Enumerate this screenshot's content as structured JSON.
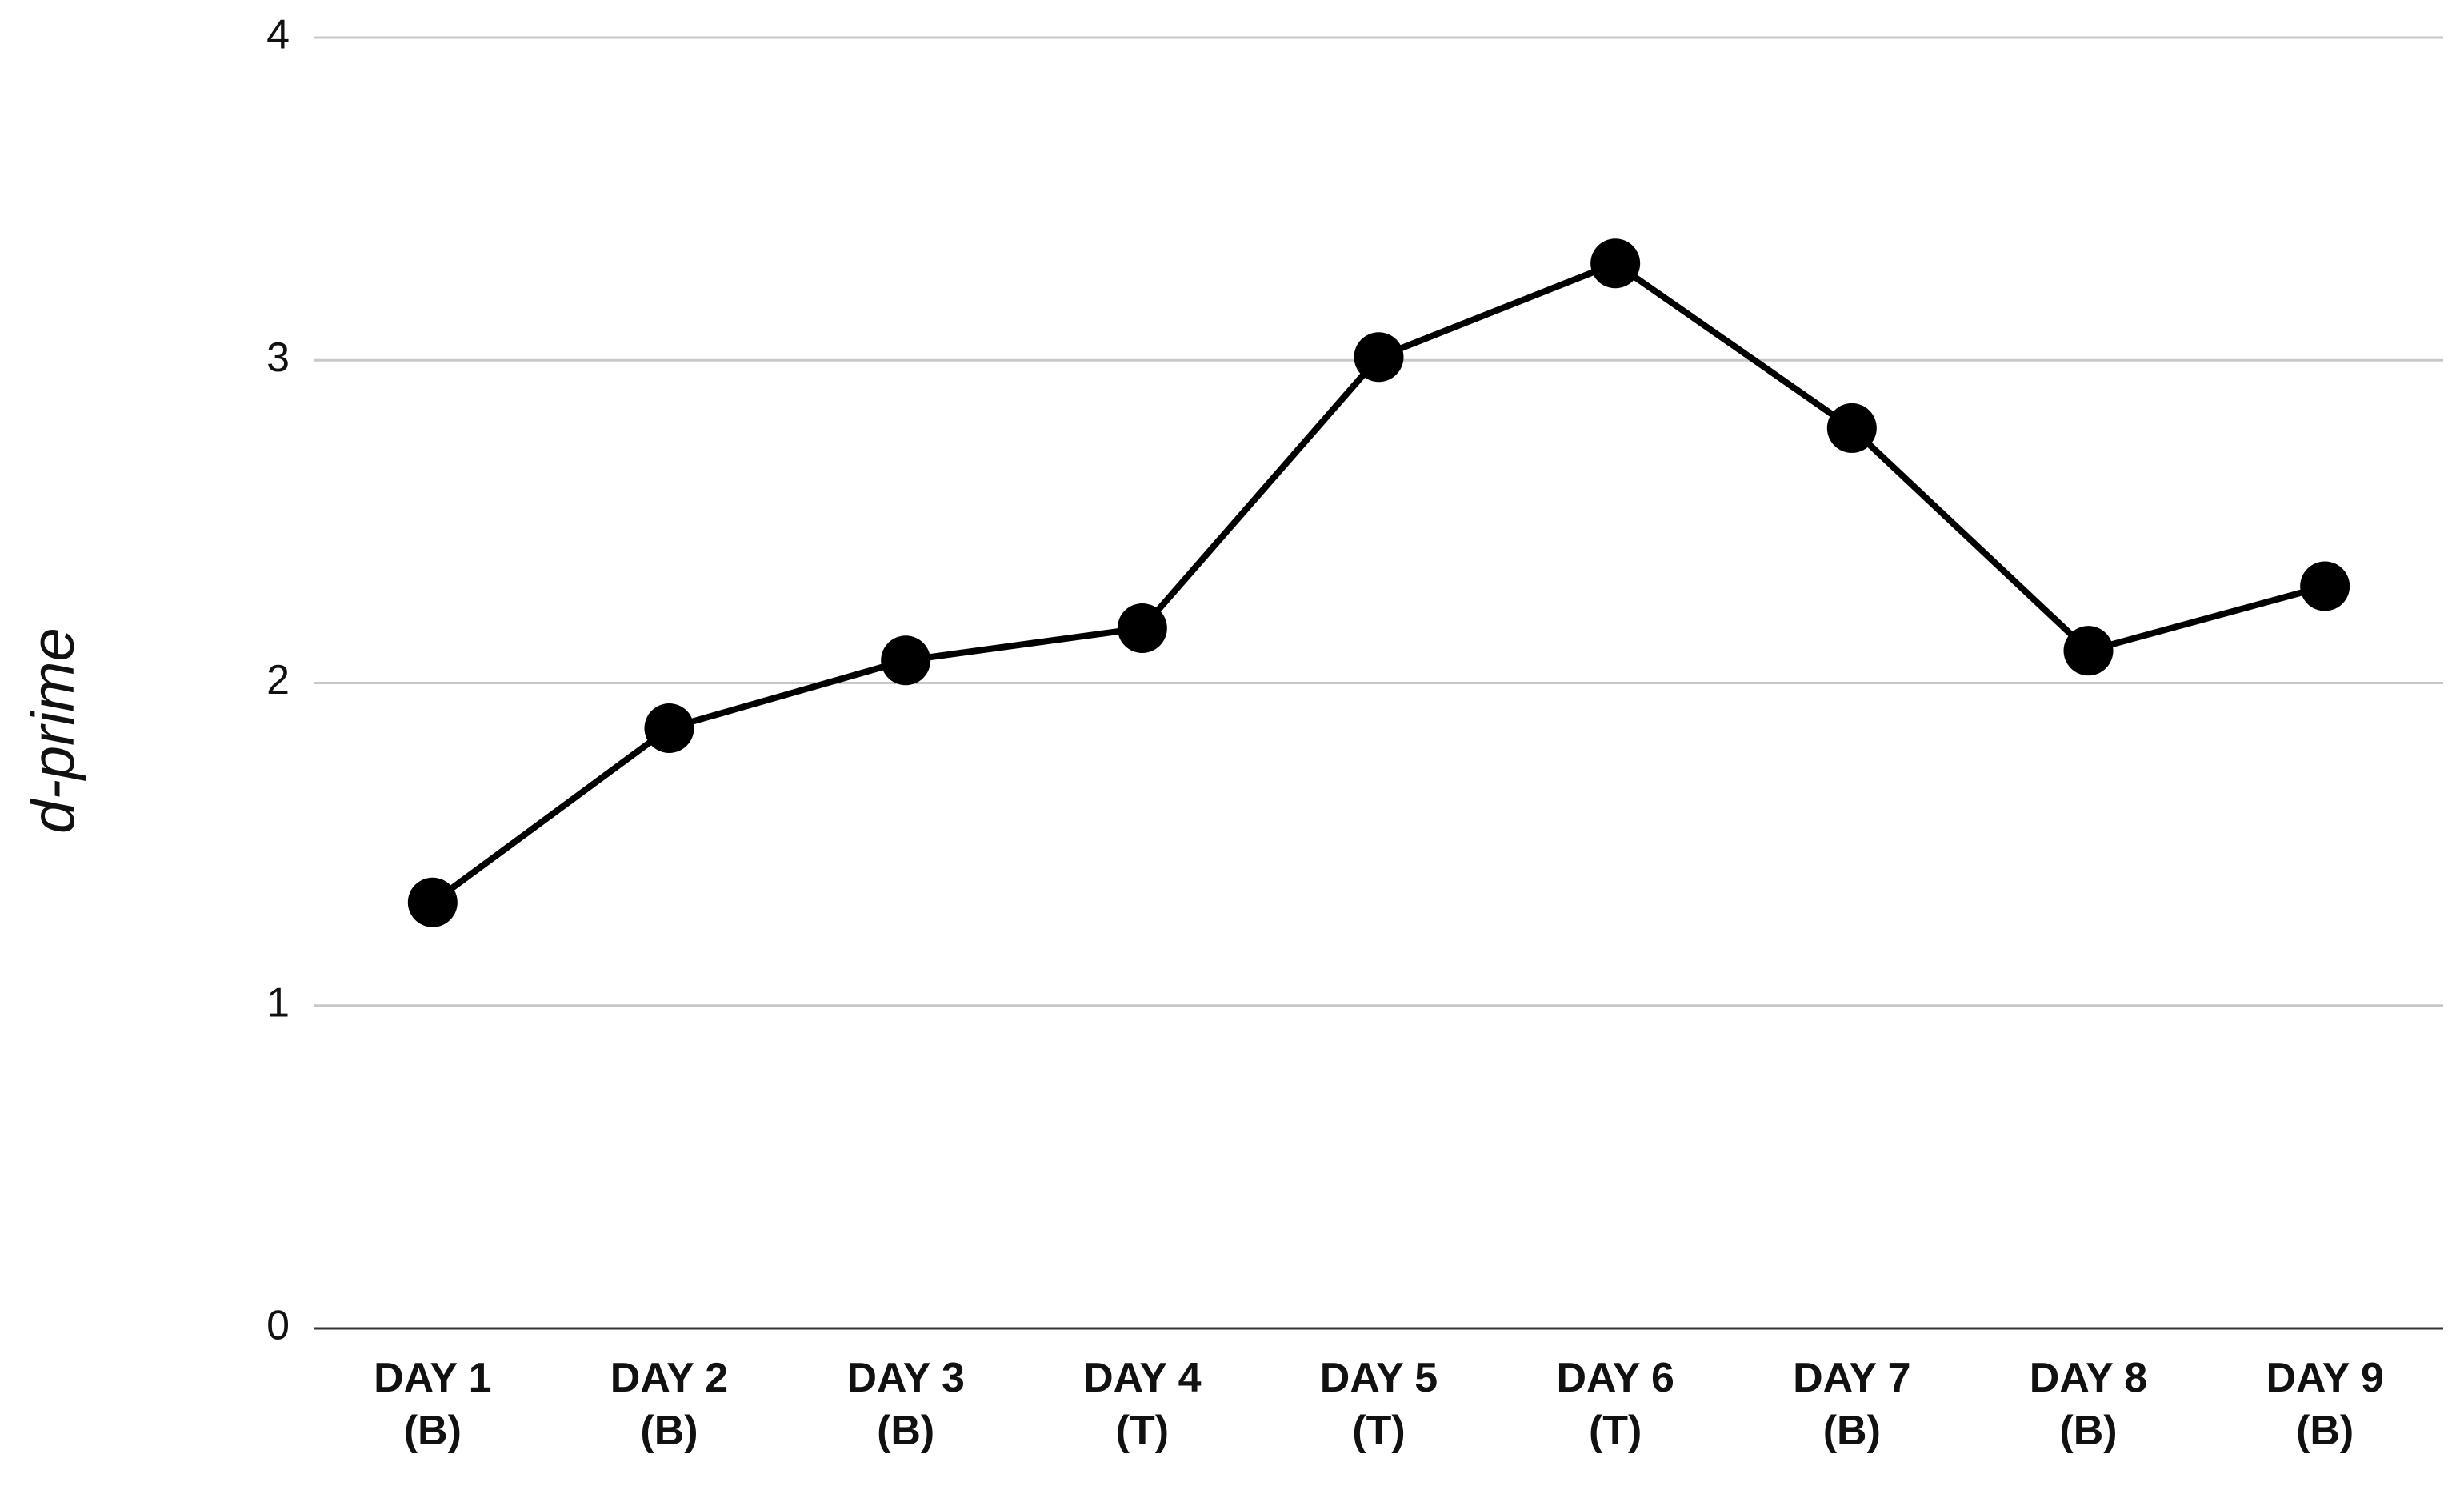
{
  "chart_data": {
    "type": "line",
    "y_label": "d-prime",
    "categories": [
      [
        "DAY 1",
        "(B)"
      ],
      [
        "DAY 2",
        "(B)"
      ],
      [
        "DAY 3",
        "(B)"
      ],
      [
        "DAY 4",
        "(T)"
      ],
      [
        "DAY 5",
        "(T)"
      ],
      [
        "DAY 6",
        "(T)"
      ],
      [
        "DAY 7",
        "(B)"
      ],
      [
        "DAY 8",
        "(B)"
      ],
      [
        "DAY 9",
        "(B)"
      ]
    ],
    "series": [
      {
        "color": "#000000",
        "values": [
          1.32,
          1.86,
          2.07,
          2.17,
          3.01,
          3.3,
          2.79,
          2.1,
          2.3
        ]
      }
    ],
    "ylim": [
      0,
      4
    ],
    "yticks": [
      0,
      1,
      2,
      3,
      4
    ],
    "grid": true
  }
}
